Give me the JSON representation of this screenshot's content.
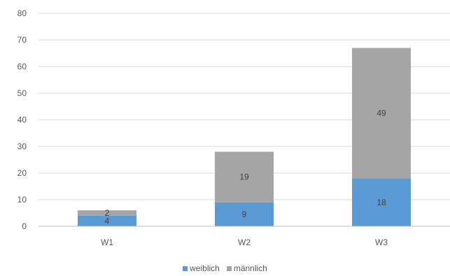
{
  "chart_data": {
    "type": "bar",
    "stacked": true,
    "categories": [
      "W1",
      "W2",
      "W3"
    ],
    "series": [
      {
        "name": "weiblich",
        "color": "#5b9bd5",
        "values": [
          4,
          9,
          18
        ]
      },
      {
        "name": "männlich",
        "color": "#a5a5a5",
        "values": [
          2,
          19,
          49
        ]
      }
    ],
    "data_labels": [
      [
        "4",
        "9",
        "18"
      ],
      [
        "2",
        "19",
        "49"
      ]
    ],
    "ylim": [
      0,
      80
    ],
    "yticks": [
      0,
      10,
      20,
      30,
      40,
      50,
      60,
      70,
      80
    ],
    "title": "",
    "xlabel": "",
    "ylabel": "",
    "grid": true,
    "legend_position": "bottom"
  }
}
